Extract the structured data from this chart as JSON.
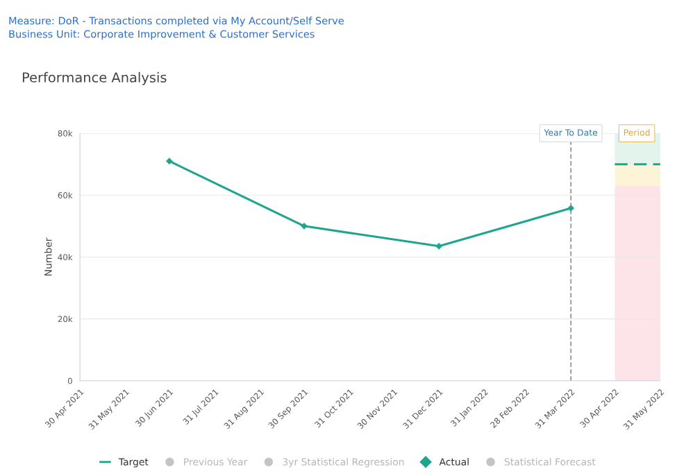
{
  "chart_data": {
    "type": "line",
    "title": "Performance Analysis",
    "annotations": [
      "Measure: DoR - Transactions completed via My Account/Self Serve",
      "Business Unit: Corporate Improvement & Customer Services",
      {
        "text": "Period",
        "x": "2022-05-15",
        "y": 80000
      }
    ],
    "ylabel": "Number",
    "series": [
      {
        "name": "Target",
        "type": "line",
        "color": "#1fa58e",
        "line_style": "dashed",
        "marker": "none",
        "x": [
          "2022-04-30",
          "2022-05-31"
        ],
        "values": [
          70000,
          70000
        ]
      },
      {
        "name": "Previous Year",
        "type": "line",
        "color": "#c4c4c4"
      },
      {
        "name": "3yr Statistical Regression",
        "type": "line",
        "color": "#c4c4c4"
      },
      {
        "name": "Actual",
        "type": "line",
        "color": "#1fa58e",
        "marker": "diamond",
        "x": [
          "2021-06-30",
          "2021-09-30",
          "2021-12-31",
          "2022-03-31"
        ],
        "values": [
          71000,
          50000,
          43500,
          55800
        ]
      },
      {
        "name": "Statistical Forecast",
        "type": "line",
        "color": "#c4c4c4"
      }
    ],
    "ref_lines": [
      {
        "axis": "x",
        "value": "2022-03-31",
        "label": "Year To Date",
        "color": "#555555",
        "line_style": "dashed"
      }
    ],
    "bands": [
      {
        "axis": "y",
        "from": 70000,
        "to": 80000,
        "color": "#e2f4ec"
      },
      {
        "axis": "y",
        "from": 63000,
        "to": 70000,
        "color": "#fdf4d8"
      },
      {
        "axis": "y",
        "from": 0,
        "to": 63000,
        "color": "#fde4e8"
      }
    ],
    "xlim": [
      "2021-04-30",
      "2022-05-31"
    ],
    "xticks": [
      {
        "value": "2021-04-30",
        "label": "30 Apr 2021"
      },
      {
        "value": "2021-05-31",
        "label": "31 May 2021"
      },
      {
        "value": "2021-06-30",
        "label": "30 Jun 2021"
      },
      {
        "value": "2021-07-31",
        "label": "31 Jul 2021"
      },
      {
        "value": "2021-08-31",
        "label": "31 Aug 2021"
      },
      {
        "value": "2021-09-30",
        "label": "30 Sep 2021"
      },
      {
        "value": "2021-10-31",
        "label": "31 Oct 2021"
      },
      {
        "value": "2021-11-30",
        "label": "30 Nov 2021"
      },
      {
        "value": "2021-12-31",
        "label": "31 Dec 2021"
      },
      {
        "value": "2022-01-31",
        "label": "31 Jan 2022"
      },
      {
        "value": "2022-02-28",
        "label": "28 Feb 2022"
      },
      {
        "value": "2022-03-31",
        "label": "31 Mar 2022"
      },
      {
        "value": "2022-04-30",
        "label": "30 Apr 2022"
      },
      {
        "value": "2022-05-31",
        "label": "31 May 2022"
      }
    ],
    "ylim": [
      0,
      80000
    ],
    "yticks": [
      0,
      {
        "value": 20000,
        "label": "20k"
      },
      {
        "value": 40000,
        "label": "40k"
      },
      {
        "value": 60000,
        "label": "60k"
      },
      {
        "value": 80000,
        "label": "80k"
      }
    ],
    "grid": "y",
    "legend": "bottom"
  }
}
